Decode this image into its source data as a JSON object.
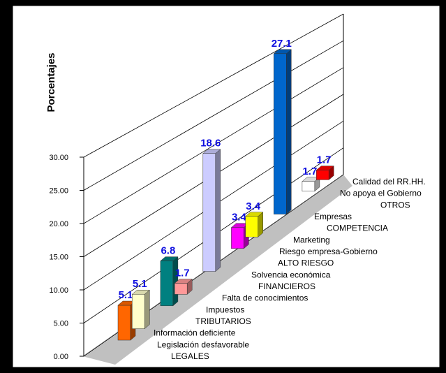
{
  "chart_data": {
    "type": "bar3d",
    "y_axis_label": "Porcentajes",
    "categories": [
      "LEGALES",
      "Legislación desfavorable",
      "Información deficiente",
      "TRIBUTARIOS",
      "Impuestos",
      "Falta de conocimientos",
      "FINANCIEROS",
      "Solvencia económica",
      "ALTO RIESGO",
      "Riesgo empresa-Gobierno",
      "Marketing",
      "COMPETENCIA",
      "Empresas",
      "OTROS",
      "No apoya el Gobierno",
      "Calidad del RR.HH."
    ],
    "values": [
      null,
      5.1,
      5.1,
      null,
      6.8,
      1.7,
      null,
      18.6,
      null,
      3.4,
      3.4,
      null,
      27.1,
      null,
      1.7,
      1.7
    ],
    "colors": [
      null,
      "#ff6600",
      "#ffffcc",
      null,
      "#008080",
      "#ff9999",
      null,
      "#ccccff",
      null,
      "#ff00ff",
      "#ffff00",
      null,
      "#0066cc",
      null,
      "#ffffff",
      "#ff0000"
    ],
    "ylim": [
      0,
      30
    ],
    "yticks": [
      {
        "value": 0,
        "label": "0.00"
      },
      {
        "value": 5,
        "label": "5.00"
      },
      {
        "value": 10,
        "label": "10.00"
      },
      {
        "value": 15,
        "label": "15.00"
      },
      {
        "value": 20,
        "label": "20.00"
      },
      {
        "value": 25,
        "label": "25.00"
      },
      {
        "value": 30,
        "label": "30.00"
      }
    ],
    "grid": true
  }
}
